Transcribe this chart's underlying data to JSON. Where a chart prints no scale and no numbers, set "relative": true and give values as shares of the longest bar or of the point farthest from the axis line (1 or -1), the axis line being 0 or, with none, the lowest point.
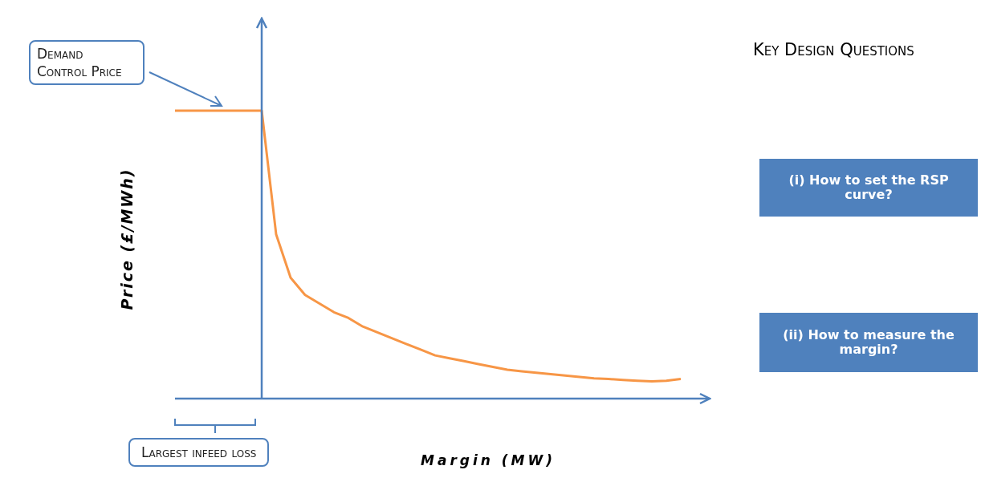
{
  "chart_data": {
    "type": "line",
    "relative": true,
    "marker": "none",
    "line_style": "solid",
    "categories": [
      null,
      null,
      null,
      null,
      null,
      null,
      null,
      null,
      null,
      null,
      null,
      null,
      null,
      null,
      null,
      null,
      null,
      null,
      null,
      null,
      null,
      null,
      null,
      null,
      null,
      null,
      null,
      null,
      null,
      null,
      null,
      null,
      null,
      null,
      null,
      null
    ],
    "series": [
      {
        "color": "#f79646",
        "values": [
          1,
          1,
          1,
          1,
          1,
          1,
          1,
          0.57,
          0.42,
          0.36,
          0.33,
          0.3,
          0.28,
          0.25,
          0.23,
          0.21,
          0.19,
          0.17,
          0.15,
          0.14,
          0.13,
          0.12,
          0.11,
          0.1,
          0.095,
          0.09,
          0.085,
          0.08,
          0.075,
          0.07,
          0.068,
          0.065,
          0.062,
          0.06,
          0.062,
          0.068
        ]
      }
    ],
    "xlabel": "Margin (MW)",
    "ylabel": "Price (£/MWh)",
    "annotations": [
      "Demand Control Price",
      "Largest infeed loss",
      "Key Design Questions",
      "(i) How to set the RSP curve?",
      "(ii) How to measure the margin?"
    ]
  }
}
